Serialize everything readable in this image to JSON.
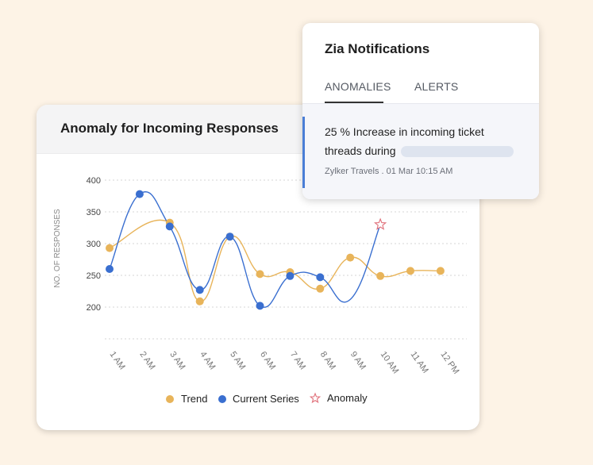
{
  "chart_card": {
    "title": "Anomaly for Incoming Responses"
  },
  "notification_card": {
    "title": "Zia Notifications",
    "tabs": [
      {
        "label": "ANOMALIES",
        "active": true
      },
      {
        "label": "ALERTS",
        "active": false
      }
    ],
    "message_text": "25 % Increase in incoming ticket threads during",
    "meta": "Zylker Travels . 01 Mar 10:15 AM"
  },
  "colors": {
    "trend": "#e8b45a",
    "current_series": "#3a6fd0",
    "anomaly": "#e0707a",
    "accent": "#4a7ed6"
  },
  "chart_data": {
    "type": "line",
    "title": "Anomaly for Incoming Responses",
    "xlabel": "",
    "ylabel": "NO. OF RESPONSES",
    "ylim": [
      150,
      400
    ],
    "yticks": [
      200,
      250,
      300,
      350,
      400
    ],
    "grid": true,
    "legend_position": "bottom-center",
    "categories": [
      "1 AM",
      "2 AM",
      "3 AM",
      "4 AM",
      "5 AM",
      "6 AM",
      "7 AM",
      "8 AM",
      "9 AM",
      "10 AM",
      "11 AM",
      "12 PM"
    ],
    "series": [
      {
        "name": "Trend",
        "values": [
          293,
          null,
          333,
          209,
          311,
          252,
          255,
          229,
          278,
          249,
          257,
          257
        ]
      },
      {
        "name": "Current Series",
        "values": [
          260,
          378,
          327,
          227,
          311,
          202,
          249,
          247,
          null,
          null,
          null,
          null
        ]
      }
    ],
    "anomaly": {
      "name": "Anomaly",
      "category": "10 AM",
      "value": 330
    },
    "legend": [
      "Trend",
      "Current Series",
      "Anomaly"
    ]
  }
}
